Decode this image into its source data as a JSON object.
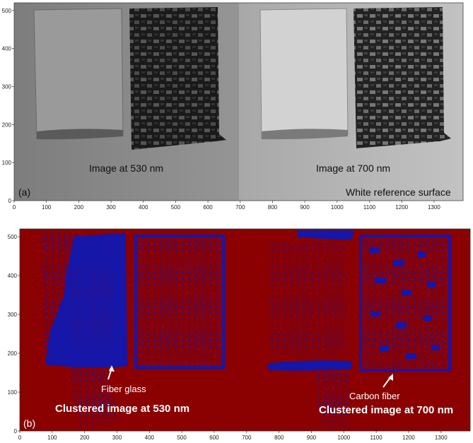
{
  "panel_a": {
    "label": "(a)",
    "caption_left": "Image at 530 nm",
    "caption_right": "Image at 700 nm",
    "caption_reference": "White reference surface",
    "x_ticks": [
      "0",
      "100",
      "200",
      "300",
      "400",
      "500",
      "600",
      "700",
      "800",
      "900",
      "1000",
      "1100",
      "1200",
      "1300"
    ],
    "y_ticks": [
      "0",
      "100",
      "200",
      "300",
      "400",
      "500"
    ]
  },
  "panel_b": {
    "label": "(b)",
    "annotation_fiber_glass": "Fiber glass",
    "annotation_carbon_fiber": "Carbon fiber",
    "caption_left": "Clustered image at 530 nm",
    "caption_right": "Clustered image at 700 nm",
    "x_ticks": [
      "0",
      "100",
      "200",
      "300",
      "400",
      "500",
      "600",
      "700",
      "800",
      "900",
      "1000",
      "1100",
      "1200",
      "1300"
    ],
    "y_ticks": [
      "0",
      "100",
      "200",
      "300",
      "400",
      "500"
    ]
  },
  "colors": {
    "cluster_background": "#8b0000",
    "cluster_foreground": "#1616a8",
    "gray_left": "#8a8a8a",
    "gray_right": "#b5b5b5"
  }
}
